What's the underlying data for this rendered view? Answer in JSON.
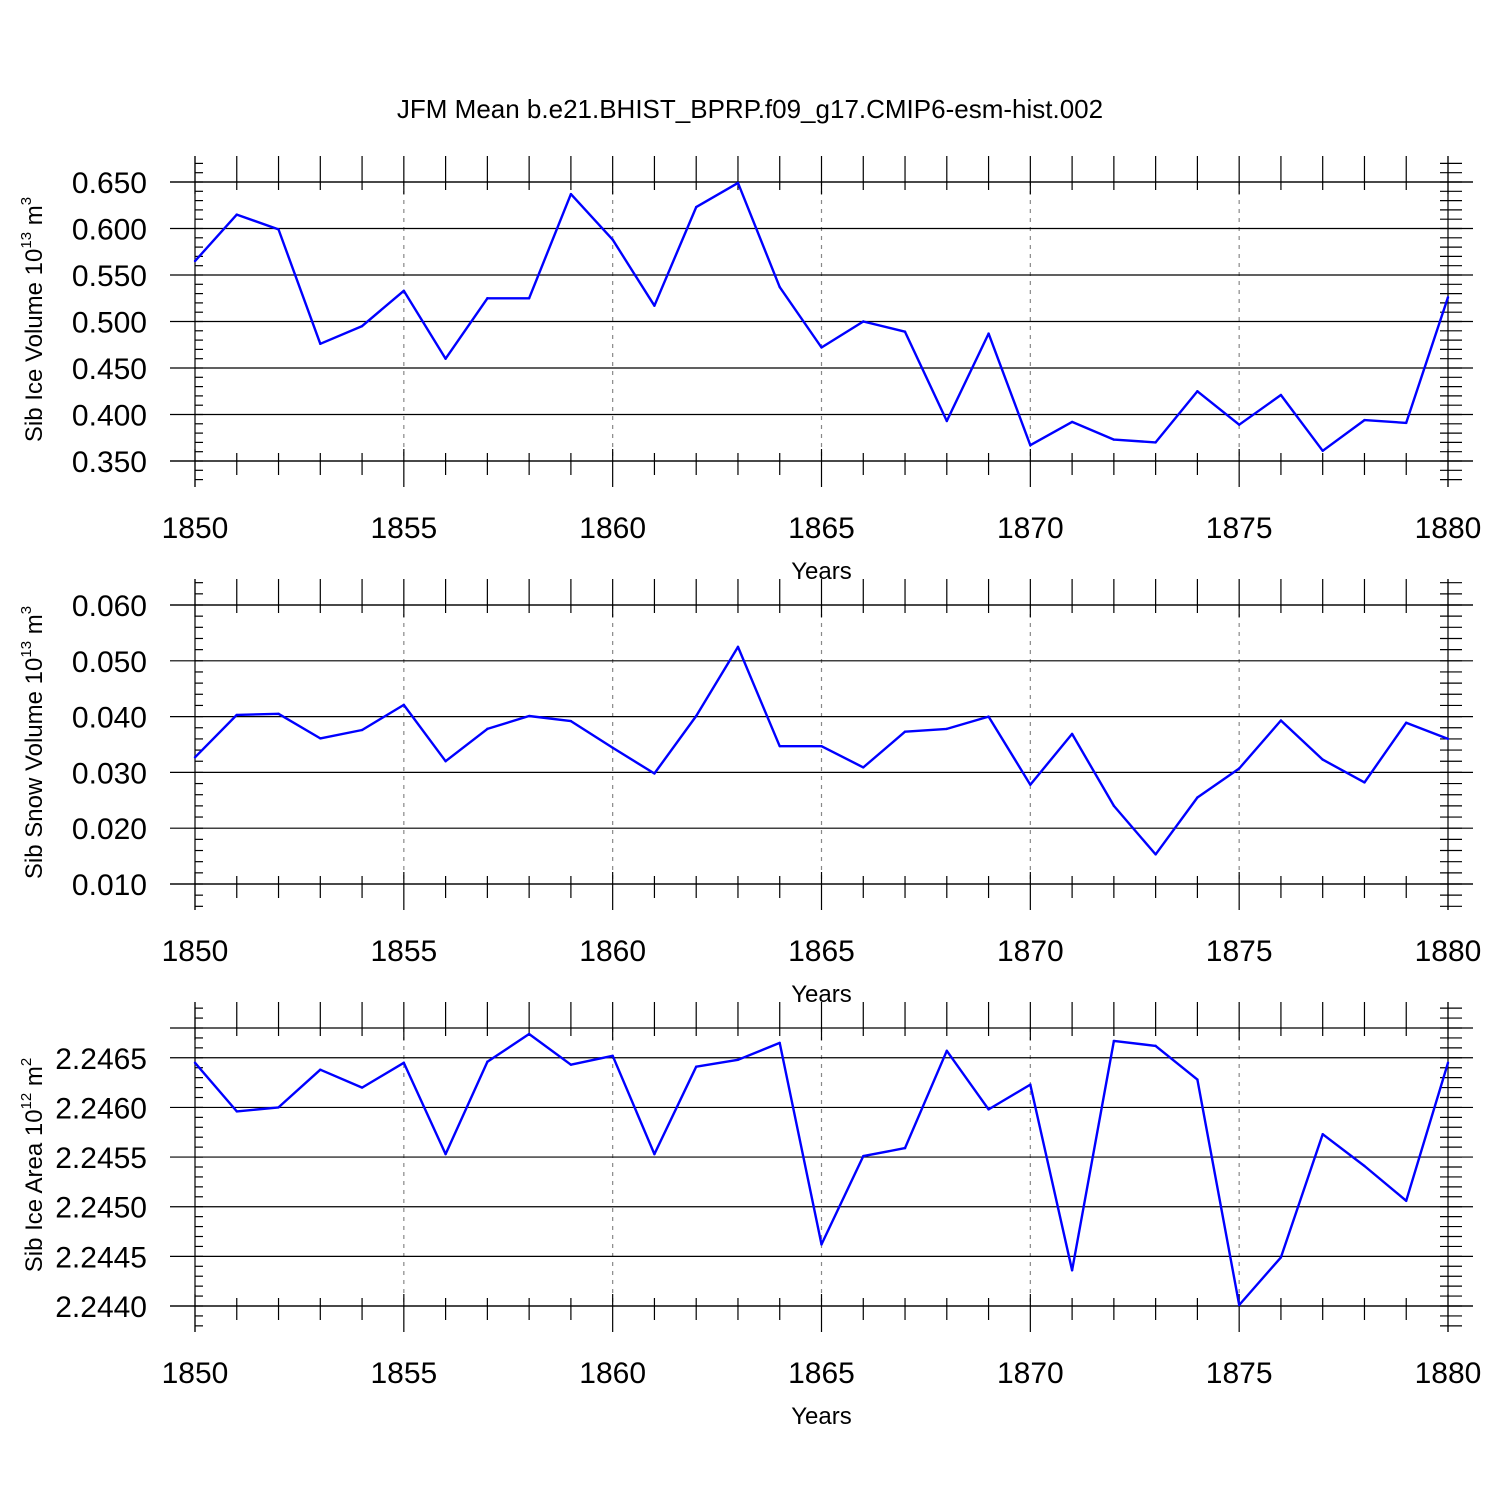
{
  "figure": {
    "title": "JFM Mean b.e21.BHIST_BPRP.f09_g17.CMIP6-esm-hist.002",
    "line_color": "#0000ff"
  },
  "chart_data": [
    {
      "type": "line",
      "ylabel": "Sib Ice Volume 10",
      "ylabel_exp": "13",
      "ylabel_unit": "m",
      "ylabel_unit_exp": "3",
      "xlabel": "Years",
      "xlim": [
        1850,
        1880
      ],
      "ylim": [
        0.35,
        0.65
      ],
      "grid": "vertical dashed at major x ticks",
      "x_ticks": [
        1850,
        1855,
        1860,
        1865,
        1870,
        1875,
        1880
      ],
      "x_tick_labels": [
        "1850",
        "1855",
        "1860",
        "1865",
        "1870",
        "1875",
        "1880"
      ],
      "y_ticks": [
        0.35,
        0.4,
        0.45,
        0.5,
        0.55,
        0.6,
        0.65
      ],
      "y_tick_labels": [
        "0.350",
        "0.400",
        "0.450",
        "0.500",
        "0.550",
        "0.600",
        "0.650"
      ],
      "x": [
        1850,
        1851,
        1852,
        1853,
        1854,
        1855,
        1856,
        1857,
        1858,
        1859,
        1860,
        1861,
        1862,
        1863,
        1864,
        1865,
        1866,
        1867,
        1868,
        1869,
        1870,
        1871,
        1872,
        1873,
        1874,
        1875,
        1876,
        1877,
        1878,
        1879,
        1880
      ],
      "y": [
        0.565,
        0.615,
        0.599,
        0.476,
        0.495,
        0.533,
        0.46,
        0.525,
        0.525,
        0.637,
        0.588,
        0.517,
        0.623,
        0.649,
        0.537,
        0.472,
        0.5,
        0.489,
        0.393,
        0.487,
        0.367,
        0.392,
        0.373,
        0.37,
        0.425,
        0.389,
        0.421,
        0.361,
        0.394,
        0.391,
        0.526
      ]
    },
    {
      "type": "line",
      "ylabel": "Sib Snow Volume 10",
      "ylabel_exp": "13",
      "ylabel_unit": "m",
      "ylabel_unit_exp": "3",
      "xlabel": "Years",
      "xlim": [
        1850,
        1880
      ],
      "ylim": [
        0.01,
        0.06
      ],
      "grid": "vertical dashed at major x ticks",
      "x_ticks": [
        1850,
        1855,
        1860,
        1865,
        1870,
        1875,
        1880
      ],
      "x_tick_labels": [
        "1850",
        "1855",
        "1860",
        "1865",
        "1870",
        "1875",
        "1880"
      ],
      "y_ticks": [
        0.01,
        0.02,
        0.03,
        0.04,
        0.05,
        0.06
      ],
      "y_tick_labels": [
        "0.010",
        "0.020",
        "0.030",
        "0.040",
        "0.050",
        "0.060"
      ],
      "x": [
        1850,
        1851,
        1852,
        1853,
        1854,
        1855,
        1856,
        1857,
        1858,
        1859,
        1860,
        1861,
        1862,
        1863,
        1864,
        1865,
        1866,
        1867,
        1868,
        1869,
        1870,
        1871,
        1872,
        1873,
        1874,
        1875,
        1876,
        1877,
        1878,
        1879,
        1880
      ],
      "y": [
        0.0327,
        0.0403,
        0.0405,
        0.0361,
        0.0376,
        0.0421,
        0.032,
        0.0378,
        0.0401,
        0.0392,
        0.0344,
        0.0298,
        0.0401,
        0.0525,
        0.0347,
        0.0347,
        0.0309,
        0.0373,
        0.0378,
        0.04,
        0.0278,
        0.0369,
        0.024,
        0.0153,
        0.0255,
        0.0307,
        0.0393,
        0.0323,
        0.0282,
        0.0389,
        0.036
      ]
    },
    {
      "type": "line",
      "ylabel": "Sib Ice Area 10",
      "ylabel_exp": "12",
      "ylabel_unit": "m",
      "ylabel_unit_exp": "2",
      "xlabel": "Years",
      "xlim": [
        1850,
        1880
      ],
      "ylim": [
        2.244,
        2.2468
      ],
      "grid": "vertical dashed at major x ticks",
      "x_ticks": [
        1850,
        1855,
        1860,
        1865,
        1870,
        1875,
        1880
      ],
      "x_tick_labels": [
        "1850",
        "1855",
        "1860",
        "1865",
        "1870",
        "1875",
        "1880"
      ],
      "y_ticks": [
        2.244,
        2.2445,
        2.245,
        2.2455,
        2.246,
        2.2465
      ],
      "y_tick_labels": [
        "2.2440",
        "2.2445",
        "2.2450",
        "2.2455",
        "2.2460",
        "2.2465"
      ],
      "x": [
        1850,
        1851,
        1852,
        1853,
        1854,
        1855,
        1856,
        1857,
        1858,
        1859,
        1860,
        1861,
        1862,
        1863,
        1864,
        1865,
        1866,
        1867,
        1868,
        1869,
        1870,
        1871,
        1872,
        1873,
        1874,
        1875,
        1876,
        1877,
        1878,
        1879,
        1880
      ],
      "y": [
        2.24645,
        2.24596,
        2.246,
        2.24638,
        2.2462,
        2.24645,
        2.24553,
        2.24646,
        2.24674,
        2.24643,
        2.24652,
        2.24553,
        2.24641,
        2.24648,
        2.24665,
        2.24462,
        2.24551,
        2.24559,
        2.24657,
        2.24598,
        2.24623,
        2.24436,
        2.24667,
        2.24662,
        2.24628,
        2.24401,
        2.24449,
        2.24573,
        2.24541,
        2.24506,
        2.24645
      ]
    }
  ]
}
